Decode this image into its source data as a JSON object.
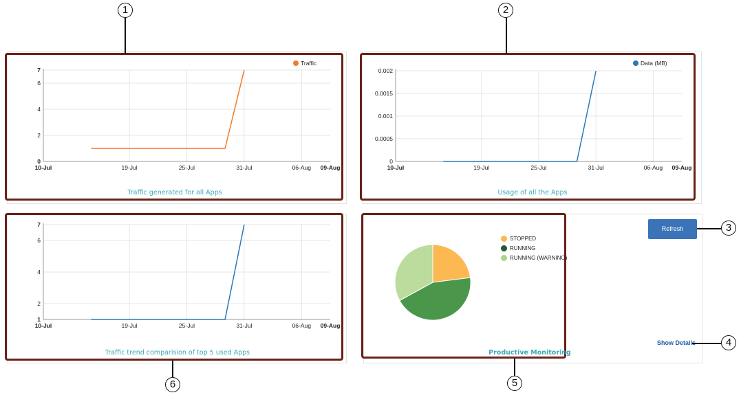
{
  "colors": {
    "frame": "#6b2018",
    "caption": "#3fa9b5",
    "traffic": "#f07a2a",
    "data": "#2a78b5",
    "trend": "#2a78b5",
    "stopped": "#fcb851",
    "running": "#4a974b",
    "running_warning": "#bcdc9d",
    "button": "#3b73b9"
  },
  "callouts": [
    "1",
    "2",
    "3",
    "4",
    "5",
    "6"
  ],
  "traffic_panel": {
    "caption": "Traffic generated for all Apps",
    "legend": "Traffic"
  },
  "usage_panel": {
    "caption": "Usage of all the Apps",
    "legend": "Data (MB)"
  },
  "trend_panel": {
    "caption": "Traffic trend comparision of top 5 used Apps"
  },
  "monitoring_panel": {
    "caption": "Productive Monitoring",
    "refresh_label": "Refresh",
    "show_details_label": "Show Details",
    "legend": [
      "STOPPED",
      "RUNNING",
      "RUNNING (WARNING)"
    ]
  },
  "chart_data": [
    {
      "type": "line",
      "title": "Traffic generated for all Apps",
      "x_ticks": [
        "10-Jul",
        "19-Jul",
        "25-Jul",
        "31-Jul",
        "06-Aug",
        "09-Aug"
      ],
      "y_ticks": [
        "0",
        "2",
        "4",
        "6",
        "7"
      ],
      "ylim": [
        0,
        7
      ],
      "series": [
        {
          "name": "Traffic",
          "x": [
            "15-Jul",
            "29-Jul",
            "31-Jul"
          ],
          "y": [
            1,
            1,
            7
          ]
        }
      ],
      "legend": "top-right",
      "grid": true
    },
    {
      "type": "line",
      "title": "Usage of all the Apps",
      "x_ticks": [
        "10-Jul",
        "19-Jul",
        "25-Jul",
        "31-Jul",
        "06-Aug",
        "09-Aug"
      ],
      "y_ticks": [
        "0",
        "0.0005",
        "0.001",
        "0.0015",
        "0.002"
      ],
      "ylim": [
        0,
        0.002
      ],
      "series": [
        {
          "name": "Data (MB)",
          "x": [
            "15-Jul",
            "29-Jul",
            "31-Jul"
          ],
          "y": [
            0,
            0,
            0.002
          ]
        }
      ],
      "legend": "top-right",
      "grid": true
    },
    {
      "type": "line",
      "title": "Traffic trend comparision of top 5 used Apps",
      "x_ticks": [
        "10-Jul",
        "19-Jul",
        "25-Jul",
        "31-Jul",
        "06-Aug",
        "09-Aug"
      ],
      "y_ticks": [
        "1",
        "2",
        "4",
        "6",
        "7"
      ],
      "ylim": [
        1,
        7
      ],
      "series": [
        {
          "x": [
            "15-Jul",
            "29-Jul",
            "31-Jul"
          ],
          "y": [
            1,
            1,
            7
          ]
        }
      ],
      "grid": true
    },
    {
      "type": "pie",
      "title": "Productive Monitoring",
      "slices": [
        {
          "label": "STOPPED",
          "value": 23
        },
        {
          "label": "RUNNING",
          "value": 44
        },
        {
          "label": "RUNNING (WARNING)",
          "value": 33
        }
      ],
      "legend": "right"
    }
  ]
}
